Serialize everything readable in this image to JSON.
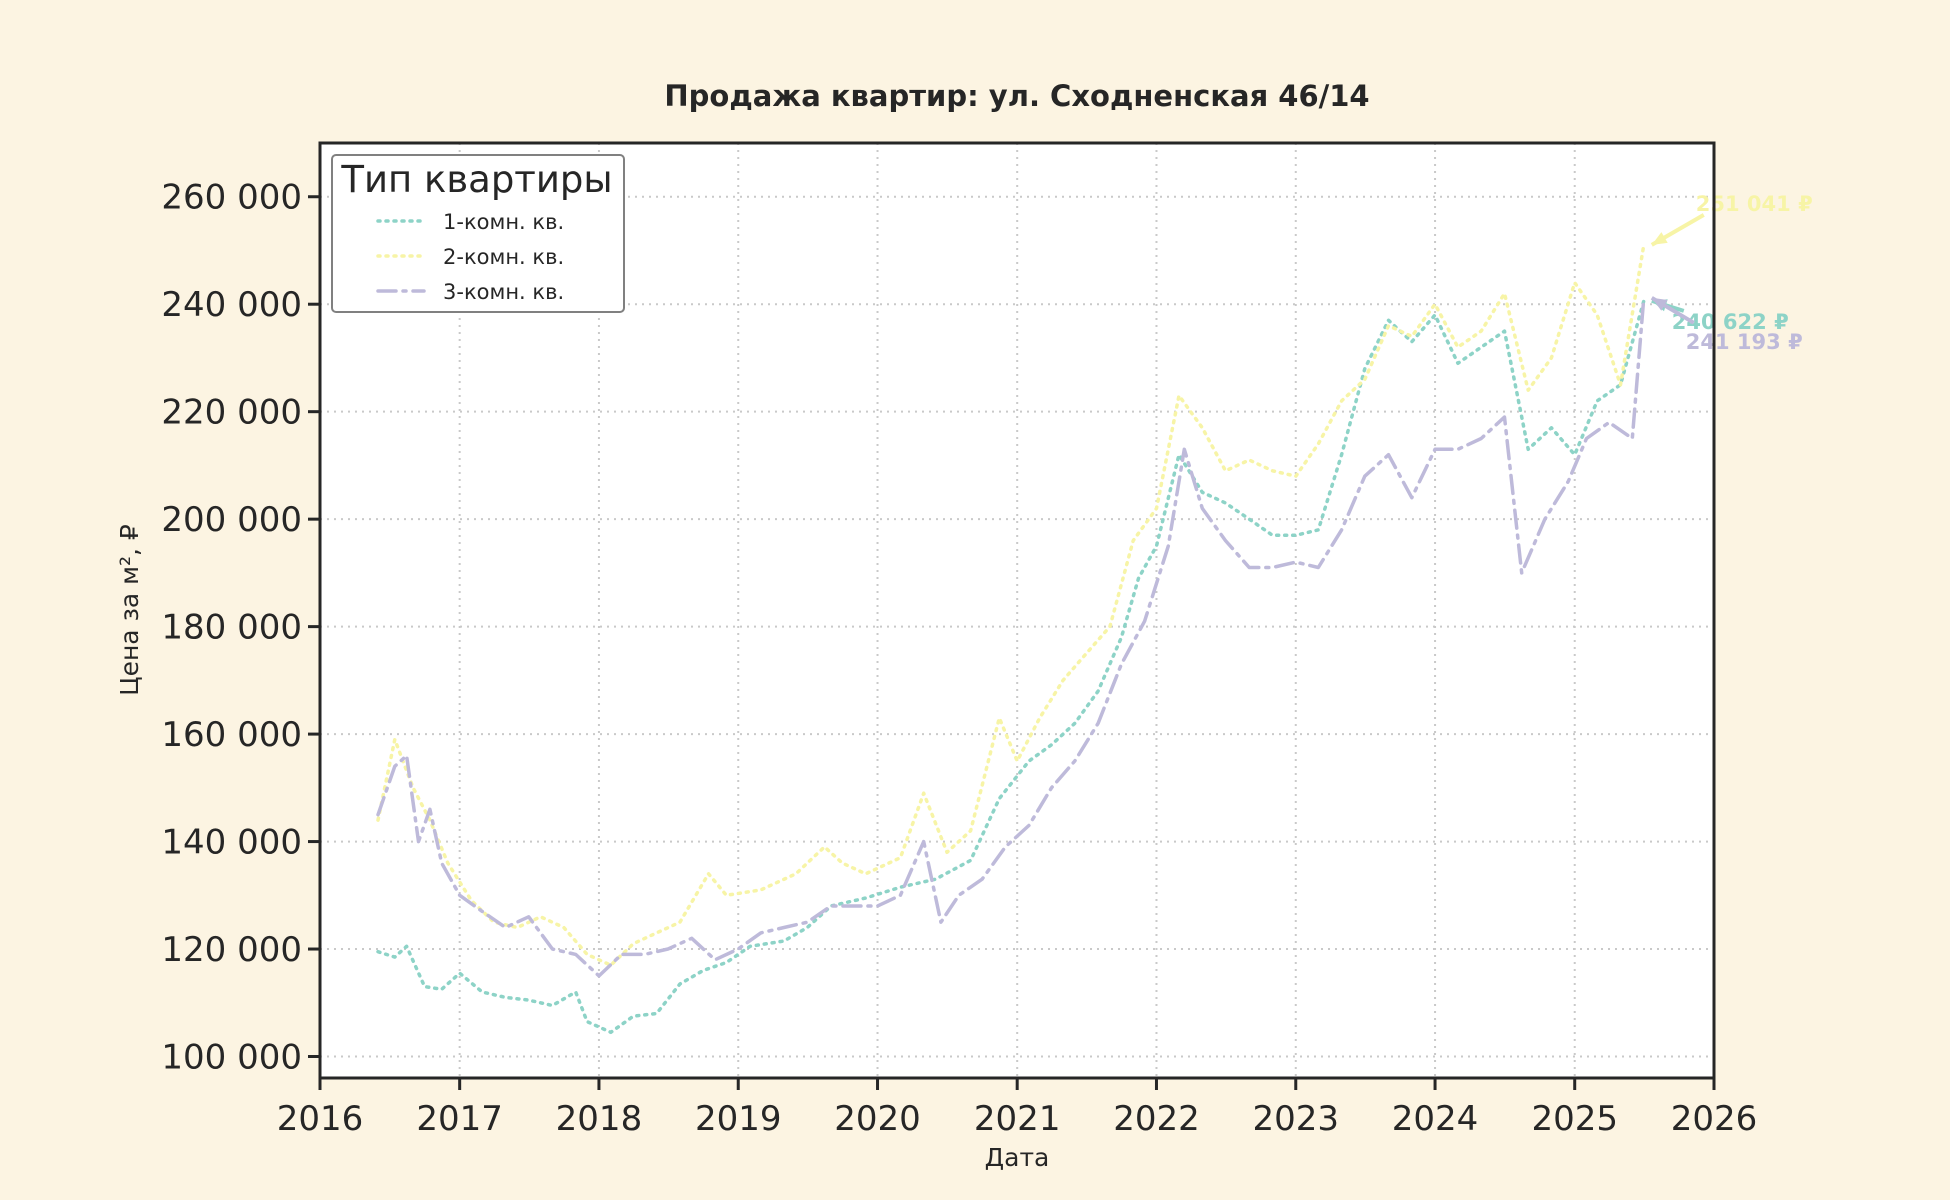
{
  "chart_data": {
    "type": "line",
    "title": "Продажа квартир: ул. Сходненская 46/14",
    "xlabel": "Дата",
    "ylabel": "Цена за м², ₽",
    "xlim": [
      "2016-01-01",
      "2026-01-01"
    ],
    "ylim": [
      96000,
      270000
    ],
    "x_ticks": [
      "2016",
      "2017",
      "2018",
      "2019",
      "2020",
      "2021",
      "2022",
      "2023",
      "2024",
      "2025",
      "2026"
    ],
    "y_ticks": [
      100000,
      120000,
      140000,
      160000,
      180000,
      200000,
      220000,
      240000,
      260000
    ],
    "y_tick_labels": [
      "100 000",
      "120 000",
      "140 000",
      "160 000",
      "180 000",
      "200 000",
      "220 000",
      "240 000",
      "260 000"
    ],
    "grid": true,
    "legend": {
      "title": "Тип квартиры",
      "placement": "top-left"
    },
    "series": [
      {
        "name": "1-комн. кв.",
        "color": "#8dd3c7",
        "dash": "dotted",
        "points": [
          [
            "2016-06-01",
            119500
          ],
          [
            "2016-07-15",
            118500
          ],
          [
            "2016-08-15",
            120500
          ],
          [
            "2016-10-01",
            113000
          ],
          [
            "2016-11-15",
            112500
          ],
          [
            "2017-01-01",
            115500
          ],
          [
            "2017-03-01",
            112000
          ],
          [
            "2017-05-01",
            111000
          ],
          [
            "2017-07-01",
            110500
          ],
          [
            "2017-09-01",
            109500
          ],
          [
            "2017-11-01",
            112000
          ],
          [
            "2017-12-01",
            106500
          ],
          [
            "2018-02-01",
            104500
          ],
          [
            "2018-04-01",
            107500
          ],
          [
            "2018-06-01",
            108000
          ],
          [
            "2018-08-01",
            113500
          ],
          [
            "2018-10-01",
            116000
          ],
          [
            "2018-12-01",
            117500
          ],
          [
            "2019-02-01",
            120500
          ],
          [
            "2019-05-01",
            121500
          ],
          [
            "2019-07-01",
            124000
          ],
          [
            "2019-09-01",
            128000
          ],
          [
            "2019-12-01",
            129500
          ],
          [
            "2020-03-01",
            131500
          ],
          [
            "2020-06-01",
            133000
          ],
          [
            "2020-09-01",
            136500
          ],
          [
            "2020-11-15",
            148000
          ],
          [
            "2021-02-01",
            155000
          ],
          [
            "2021-04-01",
            158000
          ],
          [
            "2021-06-01",
            162000
          ],
          [
            "2021-08-01",
            168000
          ],
          [
            "2021-10-01",
            178000
          ],
          [
            "2021-11-15",
            189000
          ],
          [
            "2022-01-01",
            195000
          ],
          [
            "2022-03-01",
            212000
          ],
          [
            "2022-05-01",
            205000
          ],
          [
            "2022-07-01",
            203000
          ],
          [
            "2022-09-01",
            200000
          ],
          [
            "2022-11-01",
            197000
          ],
          [
            "2023-01-01",
            197000
          ],
          [
            "2023-03-01",
            198000
          ],
          [
            "2023-05-01",
            212000
          ],
          [
            "2023-07-01",
            228000
          ],
          [
            "2023-09-01",
            237000
          ],
          [
            "2023-11-01",
            233000
          ],
          [
            "2024-01-01",
            238000
          ],
          [
            "2024-03-01",
            229000
          ],
          [
            "2024-05-01",
            232000
          ],
          [
            "2024-07-01",
            235000
          ],
          [
            "2024-09-01",
            213000
          ],
          [
            "2024-11-01",
            217000
          ],
          [
            "2025-01-01",
            212000
          ],
          [
            "2025-03-01",
            222000
          ],
          [
            "2025-05-01",
            225000
          ],
          [
            "2025-07-01",
            240622
          ]
        ]
      },
      {
        "name": "2-комн. кв.",
        "color": "#f7f4a6",
        "dash": "dotted",
        "points": [
          [
            "2016-06-01",
            144000
          ],
          [
            "2016-07-15",
            159000
          ],
          [
            "2016-09-01",
            150000
          ],
          [
            "2016-10-15",
            144000
          ],
          [
            "2016-12-01",
            136000
          ],
          [
            "2017-02-01",
            129000
          ],
          [
            "2017-04-01",
            125000
          ],
          [
            "2017-06-01",
            124000
          ],
          [
            "2017-08-01",
            126000
          ],
          [
            "2017-10-01",
            124000
          ],
          [
            "2017-12-01",
            119000
          ],
          [
            "2018-02-01",
            117000
          ],
          [
            "2018-04-01",
            121000
          ],
          [
            "2018-06-01",
            123000
          ],
          [
            "2018-08-01",
            125000
          ],
          [
            "2018-10-15",
            134000
          ],
          [
            "2018-12-01",
            130000
          ],
          [
            "2019-03-01",
            131000
          ],
          [
            "2019-06-01",
            134000
          ],
          [
            "2019-08-15",
            139000
          ],
          [
            "2019-10-01",
            136000
          ],
          [
            "2019-12-01",
            134000
          ],
          [
            "2020-03-01",
            137000
          ],
          [
            "2020-05-01",
            149000
          ],
          [
            "2020-07-01",
            138000
          ],
          [
            "2020-09-01",
            142000
          ],
          [
            "2020-11-15",
            163000
          ],
          [
            "2021-01-01",
            155000
          ],
          [
            "2021-03-01",
            163000
          ],
          [
            "2021-05-01",
            170000
          ],
          [
            "2021-07-01",
            175000
          ],
          [
            "2021-09-01",
            180000
          ],
          [
            "2021-11-01",
            196000
          ],
          [
            "2022-01-01",
            202000
          ],
          [
            "2022-03-01",
            223000
          ],
          [
            "2022-05-01",
            217000
          ],
          [
            "2022-07-01",
            209000
          ],
          [
            "2022-09-01",
            211000
          ],
          [
            "2022-11-01",
            209000
          ],
          [
            "2023-01-01",
            208000
          ],
          [
            "2023-03-01",
            214000
          ],
          [
            "2023-05-01",
            222000
          ],
          [
            "2023-07-01",
            226000
          ],
          [
            "2023-09-01",
            236000
          ],
          [
            "2023-11-01",
            234000
          ],
          [
            "2024-01-01",
            240000
          ],
          [
            "2024-03-01",
            232000
          ],
          [
            "2024-05-01",
            235000
          ],
          [
            "2024-07-01",
            242000
          ],
          [
            "2024-09-01",
            224000
          ],
          [
            "2024-11-01",
            230000
          ],
          [
            "2025-01-01",
            244000
          ],
          [
            "2025-03-01",
            238000
          ],
          [
            "2025-05-01",
            225000
          ],
          [
            "2025-07-01",
            251041
          ]
        ]
      },
      {
        "name": "3-комн. кв.",
        "color": "#bebada",
        "dash": "dashdot",
        "points": [
          [
            "2016-06-01",
            145000
          ],
          [
            "2016-07-15",
            154000
          ],
          [
            "2016-08-15",
            156000
          ],
          [
            "2016-09-15",
            140000
          ],
          [
            "2016-10-15",
            146000
          ],
          [
            "2016-11-15",
            136000
          ],
          [
            "2017-01-01",
            130000
          ],
          [
            "2017-03-01",
            127000
          ],
          [
            "2017-05-01",
            124000
          ],
          [
            "2017-07-01",
            126000
          ],
          [
            "2017-09-01",
            120000
          ],
          [
            "2017-11-01",
            119000
          ],
          [
            "2018-01-01",
            115000
          ],
          [
            "2018-03-01",
            119000
          ],
          [
            "2018-05-01",
            119000
          ],
          [
            "2018-07-01",
            120000
          ],
          [
            "2018-09-01",
            122000
          ],
          [
            "2018-11-01",
            118000
          ],
          [
            "2019-01-01",
            120000
          ],
          [
            "2019-03-01",
            123000
          ],
          [
            "2019-05-01",
            124000
          ],
          [
            "2019-07-01",
            125000
          ],
          [
            "2019-09-01",
            128000
          ],
          [
            "2019-11-01",
            128000
          ],
          [
            "2020-01-01",
            128000
          ],
          [
            "2020-03-01",
            130000
          ],
          [
            "2020-05-01",
            140000
          ],
          [
            "2020-06-15",
            125000
          ],
          [
            "2020-08-01",
            130000
          ],
          [
            "2020-10-01",
            133000
          ],
          [
            "2020-12-01",
            139000
          ],
          [
            "2021-02-01",
            143000
          ],
          [
            "2021-04-01",
            150000
          ],
          [
            "2021-06-01",
            155000
          ],
          [
            "2021-08-01",
            162000
          ],
          [
            "2021-10-01",
            173000
          ],
          [
            "2021-12-01",
            181000
          ],
          [
            "2022-02-01",
            195000
          ],
          [
            "2022-03-15",
            213000
          ],
          [
            "2022-05-01",
            202000
          ],
          [
            "2022-07-01",
            196000
          ],
          [
            "2022-09-01",
            191000
          ],
          [
            "2022-11-01",
            191000
          ],
          [
            "2023-01-01",
            192000
          ],
          [
            "2023-03-01",
            191000
          ],
          [
            "2023-05-01",
            198000
          ],
          [
            "2023-07-01",
            208000
          ],
          [
            "2023-09-01",
            212000
          ],
          [
            "2023-11-01",
            204000
          ],
          [
            "2024-01-01",
            213000
          ],
          [
            "2024-03-01",
            213000
          ],
          [
            "2024-05-01",
            215000
          ],
          [
            "2024-07-01",
            219000
          ],
          [
            "2024-08-15",
            190000
          ],
          [
            "2024-10-15",
            200000
          ],
          [
            "2024-12-15",
            207000
          ],
          [
            "2025-02-01",
            215000
          ],
          [
            "2025-04-01",
            218000
          ],
          [
            "2025-06-01",
            215000
          ],
          [
            "2025-07-01",
            241193
          ]
        ]
      }
    ],
    "annotations": [
      {
        "series": "2-комн. кв.",
        "text": "251 041 ₽"
      },
      {
        "series": "1-комн. кв.",
        "text": "240 622 ₽"
      },
      {
        "series": "3-комн. кв.",
        "text": "241 193 ₽"
      }
    ]
  }
}
